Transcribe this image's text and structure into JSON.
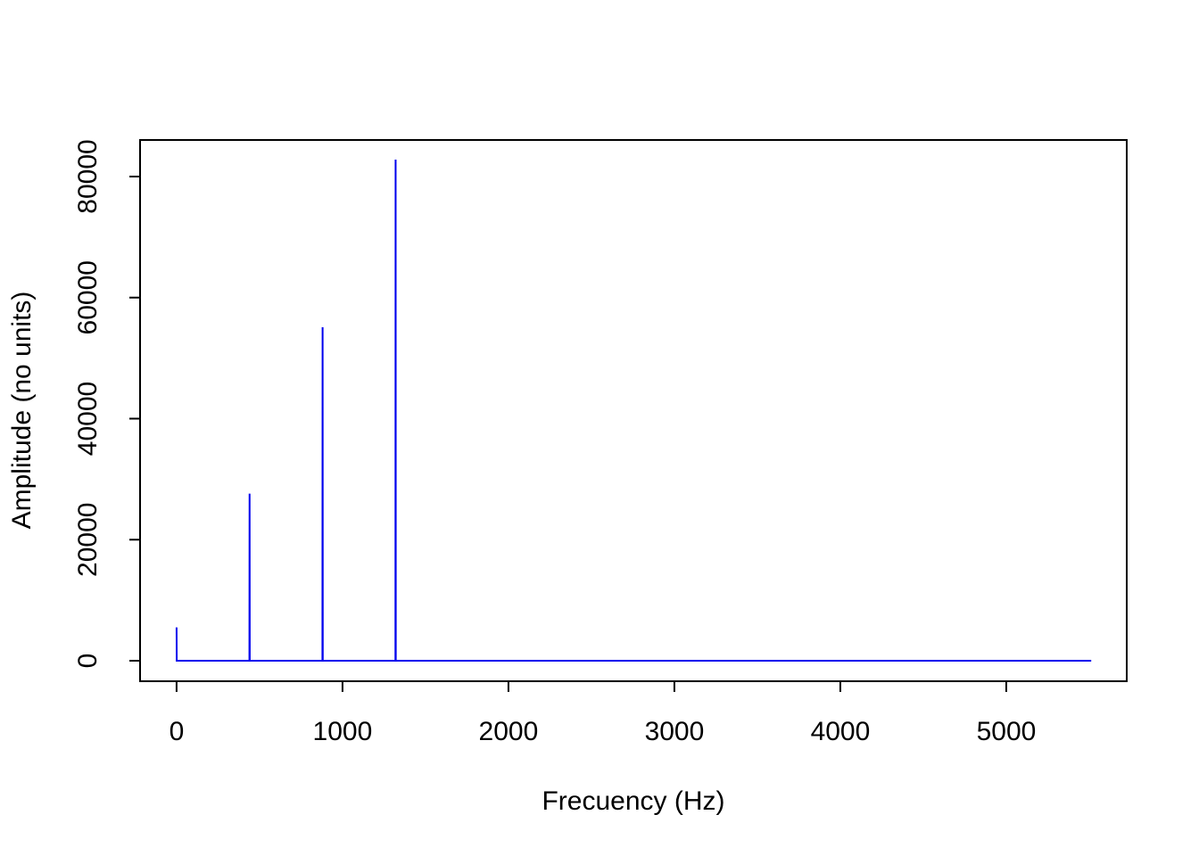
{
  "chart_data": {
    "type": "line",
    "xlabel": "Frecuency (Hz)",
    "ylabel": "Amplitude (no units)",
    "x": [
      0,
      1,
      439,
      440,
      441,
      879,
      880,
      881,
      1319,
      1320,
      1321,
      5512
    ],
    "values": [
      5500,
      0,
      0,
      27600,
      0,
      0,
      55100,
      0,
      0,
      82800,
      0,
      0
    ],
    "color": "#0000ee",
    "xlim": [
      -220,
      5726
    ],
    "ylim": [
      -3389,
      86040
    ],
    "xticks": [
      0,
      1000,
      2000,
      3000,
      4000,
      5000
    ],
    "yticks": [
      0,
      20000,
      40000,
      60000,
      80000
    ]
  }
}
